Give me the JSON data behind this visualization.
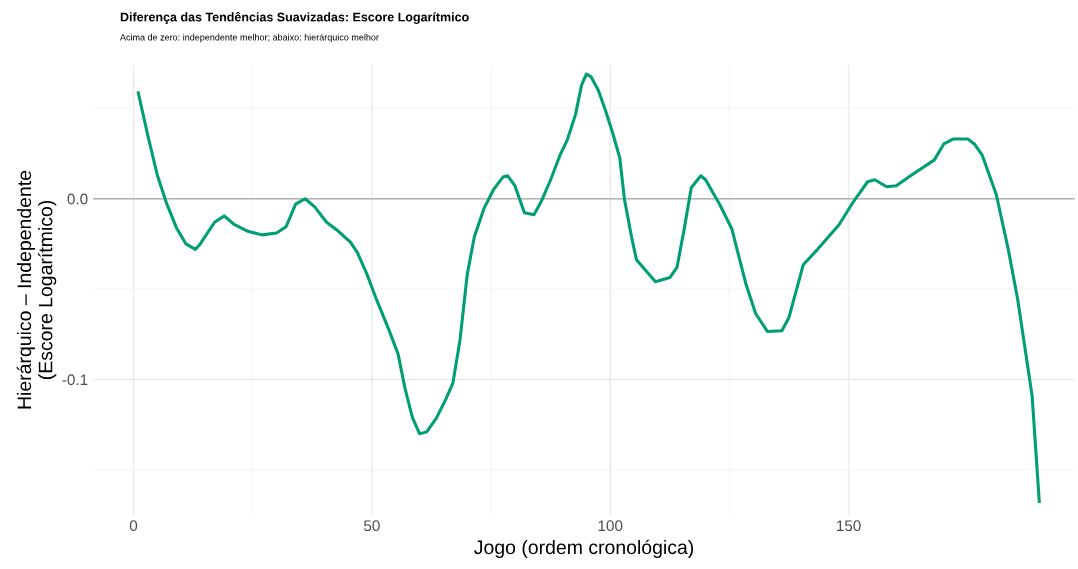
{
  "chart_data": {
    "type": "line",
    "title": "Diferença das Tendências Suavizadas: Escore Logarítmico",
    "subtitle": "Acima de zero: independente melhor; abaixo: hierárquico melhor",
    "xlabel": "Jogo (ordem cronológica)",
    "ylabel": "Hierárquico – Independente\n(Escore Logarítmico)",
    "series": [
      {
        "color": "#009e73",
        "x": [
          1,
          3,
          5,
          7,
          9,
          11,
          13,
          14,
          17,
          19,
          21,
          24,
          27,
          30,
          32,
          34,
          36,
          38,
          40.5,
          43,
          45.5,
          47,
          49,
          51,
          53.5,
          55.5,
          57,
          58.5,
          60,
          61.5,
          63.5,
          65.5,
          67,
          68.5,
          70,
          71.5,
          73.5,
          75.5,
          77.5,
          78.5,
          80,
          82,
          84,
          85.5,
          87.5,
          89.5,
          91,
          92.7,
          94,
          95,
          96,
          97.5,
          99,
          100.5,
          102,
          103,
          104.5,
          105.5,
          107.5,
          109.5,
          112.5,
          114,
          115.5,
          117,
          119,
          120,
          123,
          125.5,
          128.5,
          130.5,
          133,
          136,
          137.5,
          140.5,
          143.5,
          148,
          151,
          154,
          155.5,
          158,
          160,
          163,
          168,
          170,
          172,
          175,
          176.5,
          178,
          181,
          183.5,
          185.5,
          188.5,
          190
        ],
        "values": [
          0.0586,
          0.035,
          0.013,
          -0.003,
          -0.016,
          -0.025,
          -0.028,
          -0.025,
          -0.013,
          -0.0095,
          -0.014,
          -0.018,
          -0.02,
          -0.019,
          -0.0155,
          -0.003,
          0.0,
          -0.0045,
          -0.013,
          -0.018,
          -0.024,
          -0.03,
          -0.042,
          -0.056,
          -0.072,
          -0.086,
          -0.1055,
          -0.121,
          -0.13,
          -0.129,
          -0.1215,
          -0.111,
          -0.102,
          -0.078,
          -0.042,
          -0.021,
          -0.0055,
          0.005,
          0.012,
          0.0127,
          0.0072,
          -0.0077,
          -0.0088,
          -0.0017,
          0.0105,
          0.0243,
          0.0326,
          0.0464,
          0.063,
          0.069,
          0.0674,
          0.06,
          0.049,
          0.0365,
          0.0227,
          -0.0006,
          -0.0215,
          -0.0337,
          -0.0398,
          -0.0459,
          -0.0436,
          -0.038,
          -0.0171,
          0.0061,
          0.0127,
          0.0105,
          -0.0033,
          -0.0166,
          -0.0475,
          -0.0635,
          -0.0735,
          -0.073,
          -0.0657,
          -0.0365,
          -0.028,
          -0.0144,
          -0.0017,
          0.0094,
          0.0105,
          0.0066,
          0.0072,
          0.0127,
          0.0215,
          0.0304,
          0.0331,
          0.0331,
          0.03,
          0.0243,
          0.0022,
          -0.028,
          -0.056,
          -0.109,
          -0.1674
        ]
      }
    ],
    "xlim": [
      -8.5,
      197.5
    ],
    "ylim": [
      -0.175,
      0.074
    ],
    "xticks": [
      0,
      50,
      100,
      150
    ],
    "yticks": [
      {
        "value": -0.1,
        "label": "-0.1"
      },
      {
        "value": 0.0,
        "label": "0.0"
      }
    ],
    "ref_lines": [
      {
        "axis": "y",
        "value": 0,
        "color": "#b3b3b3"
      }
    ],
    "grid": true
  }
}
